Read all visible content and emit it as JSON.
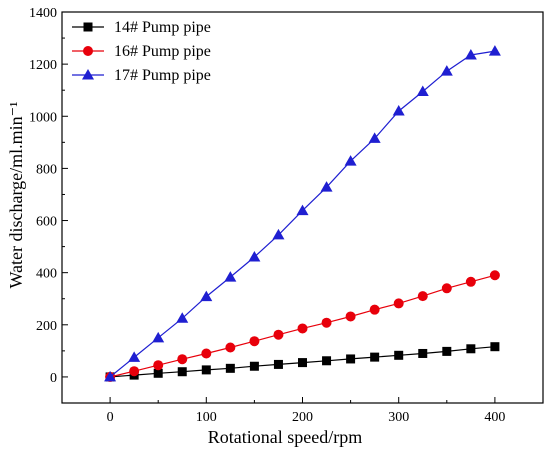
{
  "chart_data": {
    "type": "line",
    "title": "",
    "xlabel": "Rotational speed/rpm",
    "ylabel": "Water discharge/ml.min⁻¹",
    "xlim": [
      -50,
      450
    ],
    "ylim": [
      -100,
      1400
    ],
    "xticks": [
      0,
      100,
      200,
      300,
      400
    ],
    "yticks": [
      0,
      200,
      400,
      600,
      800,
      1000,
      1200,
      1400
    ],
    "grid": false,
    "legend_position": "top-left",
    "series": [
      {
        "name": "14# Pump pipe",
        "color": "#000000",
        "marker": "square",
        "x": [
          0,
          25,
          50,
          75,
          100,
          125,
          150,
          175,
          200,
          225,
          250,
          275,
          300,
          325,
          350,
          375,
          400
        ],
        "y": [
          0,
          7,
          14,
          20,
          27,
          33,
          41,
          48,
          55,
          62,
          69,
          76,
          83,
          90,
          98,
          108,
          116
        ]
      },
      {
        "name": "16# Pump pipe",
        "color": "#e8000b",
        "marker": "circle",
        "x": [
          0,
          25,
          50,
          75,
          100,
          125,
          150,
          175,
          200,
          225,
          250,
          275,
          300,
          325,
          350,
          375,
          400
        ],
        "y": [
          0,
          22,
          45,
          68,
          90,
          113,
          137,
          162,
          186,
          208,
          232,
          258,
          282,
          310,
          340,
          365,
          390
        ]
      },
      {
        "name": "17# Pump pipe",
        "color": "#1f1fd1",
        "marker": "triangle",
        "x": [
          0,
          25,
          50,
          75,
          100,
          125,
          150,
          175,
          200,
          225,
          250,
          275,
          300,
          325,
          350,
          375,
          400
        ],
        "y": [
          0,
          75,
          150,
          225,
          308,
          383,
          460,
          545,
          638,
          728,
          828,
          915,
          1020,
          1095,
          1173,
          1235,
          1250
        ]
      }
    ]
  }
}
